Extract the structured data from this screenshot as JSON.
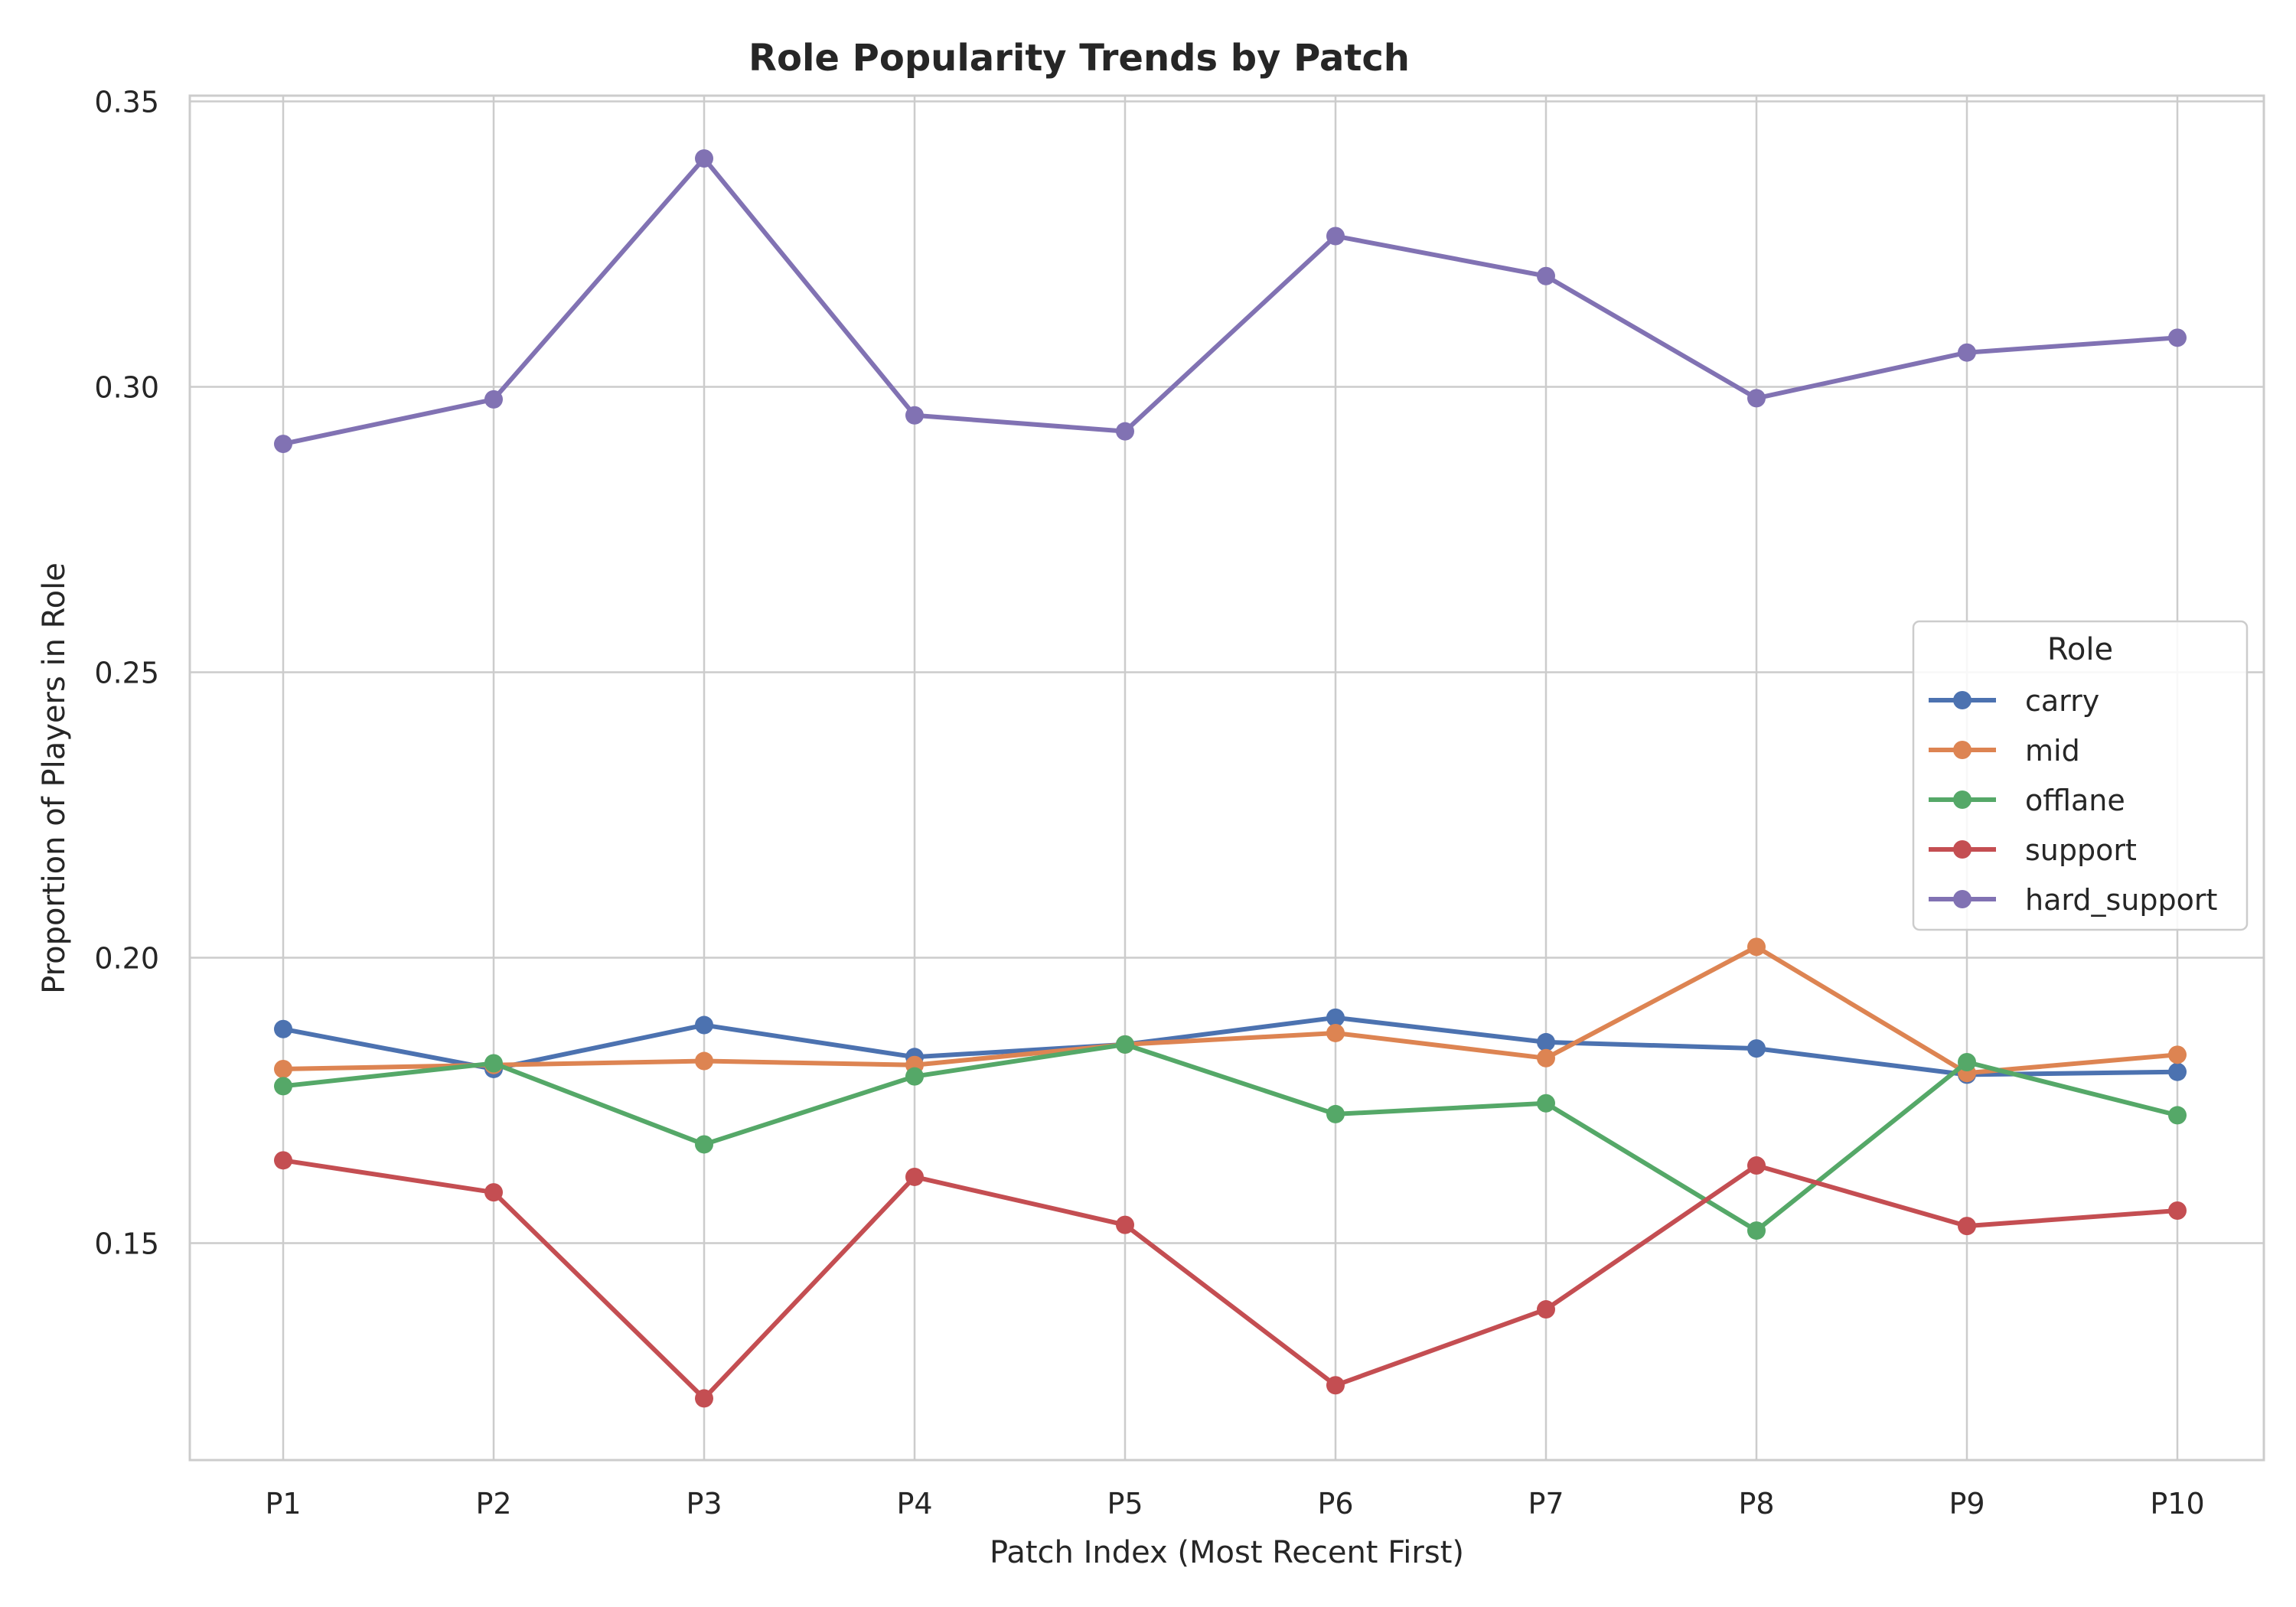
{
  "chart_data": {
    "type": "line",
    "title": "Role Popularity Trends by Patch",
    "xlabel": "Patch Index (Most Recent First)",
    "ylabel": "Proportion of Players in Role",
    "categories": [
      "P1",
      "P2",
      "P3",
      "P4",
      "P5",
      "P6",
      "P7",
      "P8",
      "P9",
      "P10"
    ],
    "ylim": [
      0.112,
      0.351
    ],
    "yticks": [
      0.15,
      0.2,
      0.25,
      0.3,
      0.35
    ],
    "ytick_labels": [
      "0.15",
      "0.20",
      "0.25",
      "0.30",
      "0.35"
    ],
    "grid": true,
    "legend": {
      "title": "Role",
      "position": "center-right"
    },
    "series": [
      {
        "name": "carry",
        "color": "#4C72B0",
        "values": [
          0.1875,
          0.1805,
          0.1882,
          0.1826,
          0.1848,
          0.1895,
          0.1852,
          0.1841,
          0.1795,
          0.18
        ]
      },
      {
        "name": "mid",
        "color": "#DD8452",
        "values": [
          0.1805,
          0.1812,
          0.1819,
          0.1812,
          0.1848,
          0.1868,
          0.1824,
          0.2019,
          0.1798,
          0.183
        ]
      },
      {
        "name": "offlane",
        "color": "#55A868",
        "values": [
          0.1775,
          0.1815,
          0.1673,
          0.1792,
          0.1848,
          0.1726,
          0.1745,
          0.1522,
          0.1817,
          0.1724
        ]
      },
      {
        "name": "support",
        "color": "#C44E52",
        "values": [
          0.1645,
          0.1589,
          0.1228,
          0.1616,
          0.1532,
          0.1251,
          0.1384,
          0.1636,
          0.153,
          0.1557
        ]
      },
      {
        "name": "hard_support",
        "color": "#8172B3",
        "values": [
          0.29,
          0.2978,
          0.34,
          0.295,
          0.2922,
          0.3264,
          0.3194,
          0.298,
          0.306,
          0.3086
        ]
      }
    ]
  }
}
